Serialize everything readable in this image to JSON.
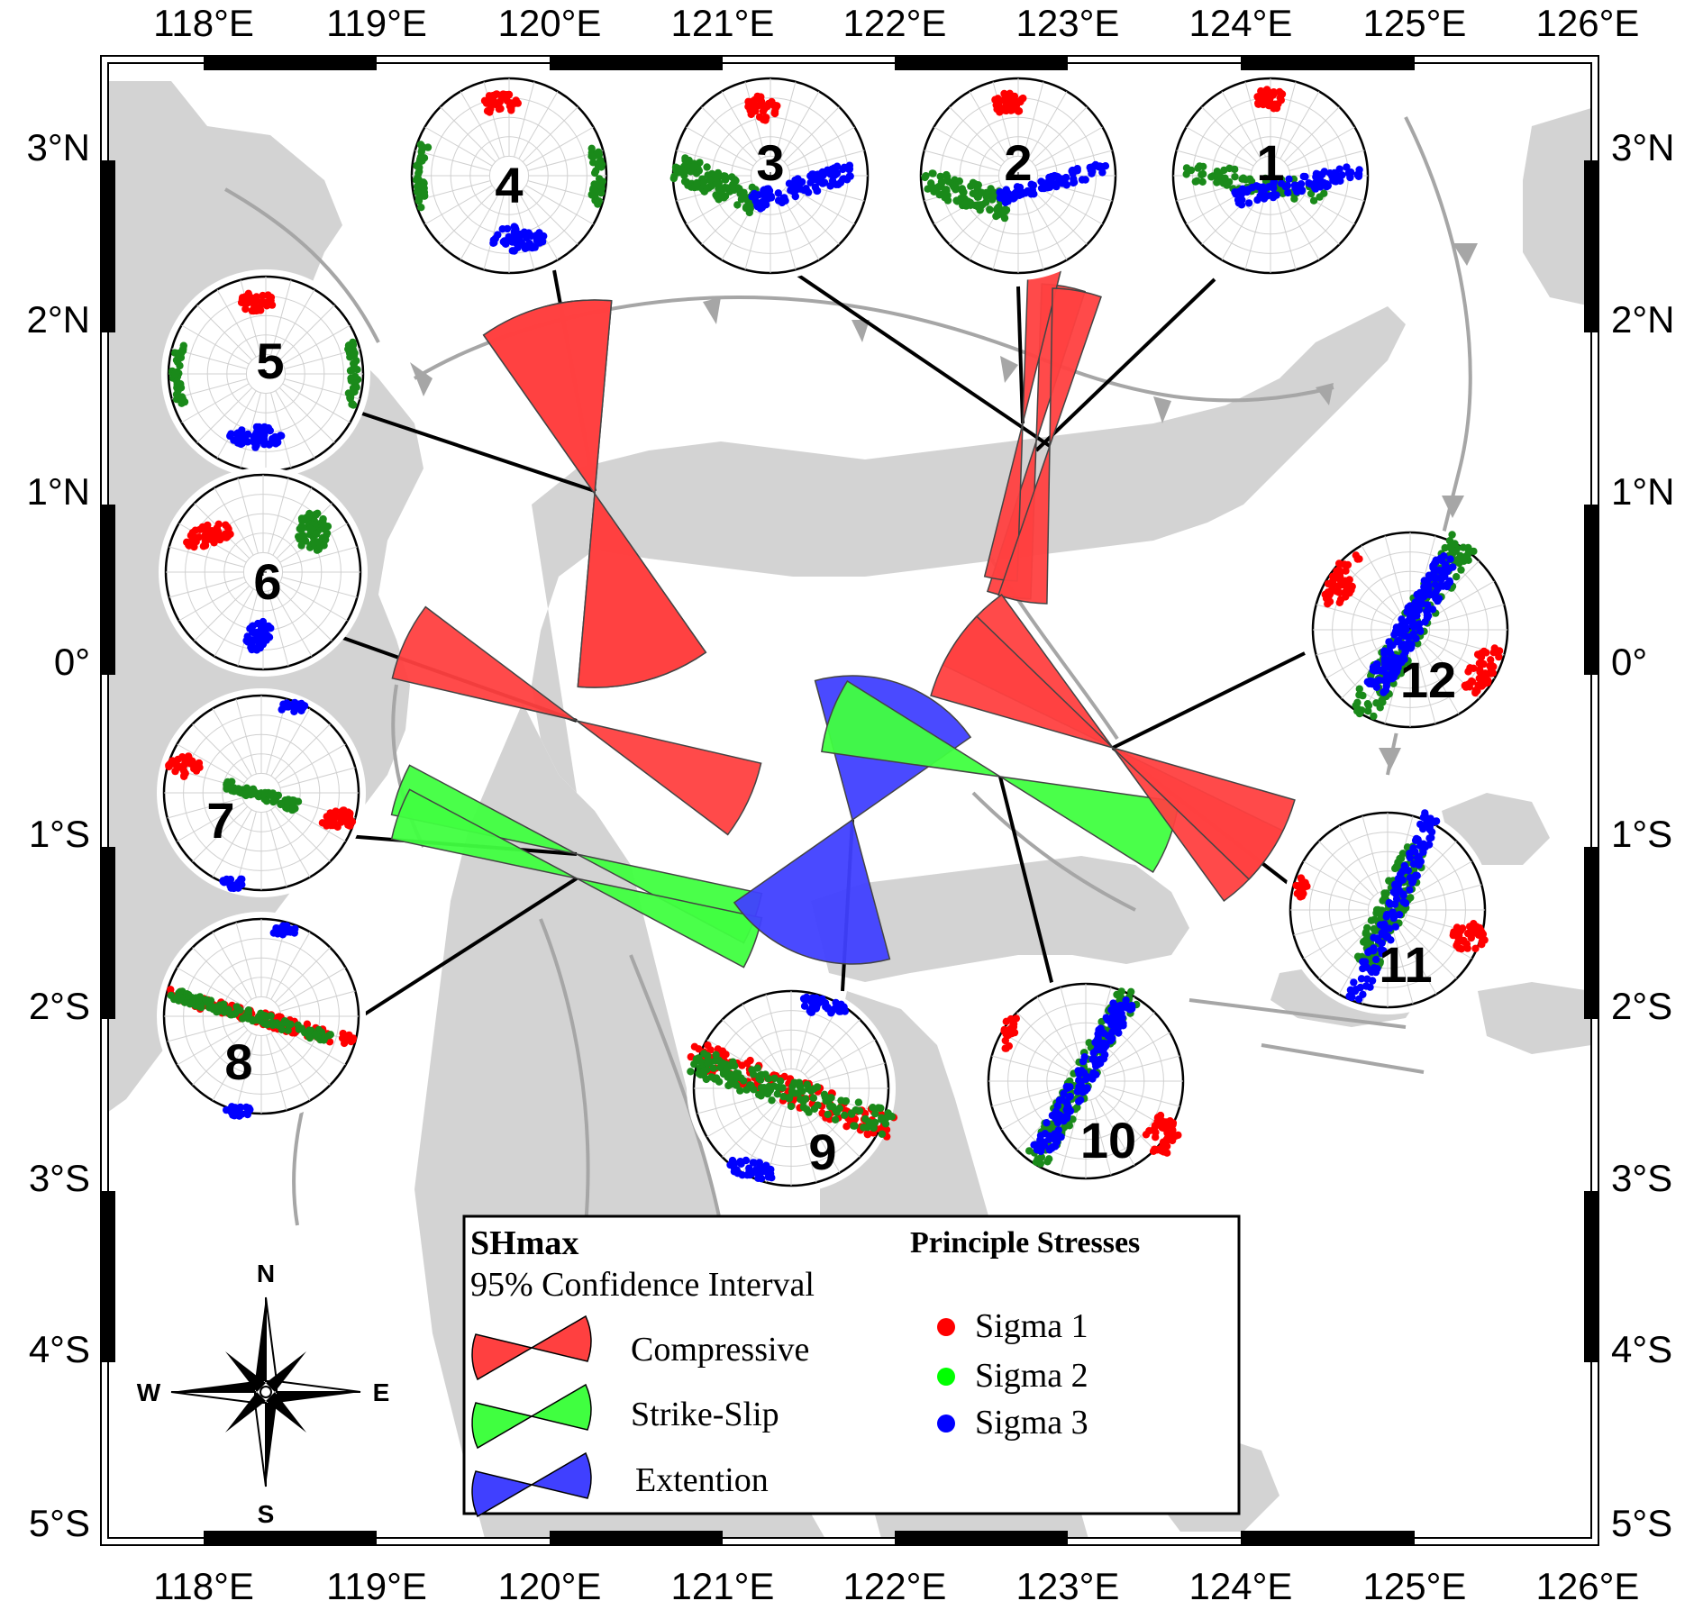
{
  "map": {
    "lon_labels": [
      "118°E",
      "119°E",
      "120°E",
      "121°E",
      "122°E",
      "123°E",
      "124°E",
      "125°E",
      "126°E"
    ],
    "lat_labels": [
      "3°N",
      "2°N",
      "1°N",
      "0°",
      "1°S",
      "2°S",
      "3°S",
      "4°S",
      "5°S"
    ],
    "land_color": "#d3d3d3",
    "fault_color": "#a6a6a6"
  },
  "legend": {
    "shmax_title": "SHmax",
    "shmax_subtitle": "95% Confidence Interval",
    "regimes": [
      {
        "label": "Compressive",
        "color": "#ff4040"
      },
      {
        "label": "Strike-Slip",
        "color": "#40ff40"
      },
      {
        "label": "Extention",
        "color": "#4040ff"
      }
    ],
    "stress_title": "Principle Stresses",
    "stresses": [
      {
        "label": "Sigma 1",
        "color": "#ff0000"
      },
      {
        "label": "Sigma 2",
        "color": "#00ff00"
      },
      {
        "label": "Sigma 3",
        "color": "#0000ff"
      }
    ]
  },
  "compass": {
    "n": "N",
    "s": "S",
    "e": "E",
    "w": "W"
  },
  "stereonets": [
    {
      "id": "1",
      "regime": "Compressive",
      "shmax_az": 10,
      "sigma1": "N",
      "sigma2": "EW",
      "sigma3": "S"
    },
    {
      "id": "2",
      "regime": "Compressive",
      "shmax_az": 8,
      "sigma1": "N",
      "sigma2": "W",
      "sigma3": "S"
    },
    {
      "id": "3",
      "regime": "Compressive",
      "shmax_az": 10,
      "sigma1": "N",
      "sigma2": "W",
      "sigma3": "S"
    },
    {
      "id": "4",
      "regime": "Compressive",
      "shmax_az": 165,
      "sigma1": "N",
      "sigma2": "EW",
      "sigma3": "S"
    },
    {
      "id": "5",
      "regime": "Compressive",
      "shmax_az": 165,
      "sigma1": "N",
      "sigma2": "EW",
      "sigma3": "S"
    },
    {
      "id": "6",
      "regime": "Compressive",
      "shmax_az": 115,
      "sigma1": "W",
      "sigma2": "NE",
      "sigma3": "S"
    },
    {
      "id": "7",
      "regime": "Strike-Slip",
      "shmax_az": 110,
      "sigma1": "W-E",
      "sigma2": "center",
      "sigma3": "N-S"
    },
    {
      "id": "8",
      "regime": "Strike-Slip",
      "shmax_az": 110,
      "sigma1": "W-E",
      "sigma2": "W-E",
      "sigma3": "N-S"
    },
    {
      "id": "9",
      "regime": "Extention",
      "shmax_az": 20,
      "sigma1": "W-E",
      "sigma2": "W-E",
      "sigma3": "N-S"
    },
    {
      "id": "10",
      "regime": "Strike-Slip",
      "shmax_az": 110,
      "sigma1": "E",
      "sigma2": "NE-SW",
      "sigma3": "NE-SW"
    },
    {
      "id": "11",
      "regime": "Compressive",
      "shmax_az": 130,
      "sigma1": "E-W",
      "sigma2": "NE-SW",
      "sigma3": "NE-SW"
    },
    {
      "id": "12",
      "regime": "Compressive",
      "shmax_az": 120,
      "sigma1": "NW-SE",
      "sigma2": "NE-SW",
      "sigma3": "NE-SW"
    }
  ]
}
